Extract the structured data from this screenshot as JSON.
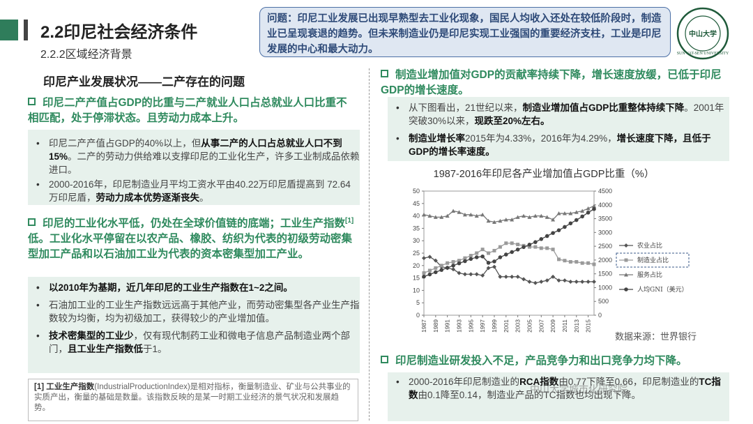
{
  "header": {
    "title": "2.2印尼社会经济条件",
    "subtitle": "2.2.2区域经济背景",
    "question": "问题：印尼工业发展已出现早熟型去工业化现象，国民人均收入还处在较低阶段时，制造业已呈现衰退的趋势。但未来制造业仍是印尼实现工业强国的重要经济支柱，工业是印尼发展的中心和最大动力。",
    "logo_text": "中山大学",
    "logo_ring_text": "SUN YAT-SEN UNIVERSITY"
  },
  "left": {
    "heading": "印尼产业发展状况——二产存在的问题",
    "point1": "印尼二产产值占GDP的比重与二产就业人口占总就业人口比重不相匹配，处于停滞状态。且劳动力成本上升。",
    "box1": {
      "b1_pre": "印尼二产产值占GDP的40%以上，但",
      "b1_bold": "从事二产的人口占总就业人口不到15%",
      "b1_post": "。二产的劳动力供给难以支撑印尼的工业化生产，许多工业制成品依赖进口。",
      "b2_pre": "2000-2016年，印尼制造业月平均工资水平由40.22万印尼盾提高到 72.64万印尼盾，",
      "b2_bold": "劳动力成本优势逐渐丧失",
      "b2_post": "。"
    },
    "point2_pre": "印尼的工业化水平低，仍处在全球价值链的底端；工业生产指数",
    "point2_sup": "[1]",
    "point2_post": "低。工业化水平停留在以农产品、橡胶、纺织为代表的初级劳动密集型加工产品和以石油加工业为代表的资本密集型加工产业。",
    "box2": {
      "b1": "以2010年为基期，近几年印尼的工业生产指数在1~2之间。",
      "b2": "石油加工业的工业生产指数远远高于其他产业，而劳动密集型各产业生产指数较为均衡，均为初级加工，获得较少的产业增加值。",
      "b3_bold": "技术密集型的工业少",
      "b3_mid": "，仅有现代制药工业和微电子信息产品制造业两个部门，",
      "b3_bold2": "且工业生产指数低",
      "b3_post": "于1。"
    },
    "footnote_label": "[1] 工业生产指数",
    "footnote_text": "(IndustrialProductionIndex)是相对指标，衡量制造业、矿业与公共事业的实质产出，衡量的基础是数量。该指数反映的是某一时期工业经济的景气状况和发展趋势。"
  },
  "right": {
    "point1": "制造业增加值对GDP的贡献率持续下降，增长速度放缓，已低于印尼GDP的增长速度。",
    "box1": {
      "b1_pre": "从下图看出，21世纪以来，",
      "b1_bold": "制造业增加值占GDP比重整体持续下降",
      "b1_mid": "。2001年突破30%以来，",
      "b1_bold2": "现跌至20%左右。",
      "b2_bold": "制造业增长率",
      "b2_mid": "2015年为4.33%，2016年为4.29%，",
      "b2_bold2": "增长速度下降，且低于GDP的增长率速度。"
    },
    "chart_title": "1987-2016年印尼各产业增加值占GDP比重（%）",
    "source": "数据来源：世界银行",
    "point2": "印尼制造业研发投入不足，产品竞争力和出口竞争力均下降。",
    "box2": {
      "b1_pre": "2000-2016年印尼制造业的",
      "b1_bold": "RCA指数",
      "b1_mid": "由0.77下降至0.66，印尼制造业的",
      "b1_bold2": "TC指数",
      "b1_post": "由0.1降至0.14，制造业产品的TC指数也均出现下降。"
    },
    "watermark": "中山大学城市化研究院"
  },
  "chart_data": {
    "type": "line",
    "title": "1987-2016年印尼各产业增加值占GDP比重（%）",
    "x": [
      1987,
      1988,
      1989,
      1990,
      1991,
      1992,
      1993,
      1994,
      1995,
      1996,
      1997,
      1998,
      1999,
      2000,
      2001,
      2002,
      2003,
      2004,
      2005,
      2006,
      2007,
      2008,
      2009,
      2010,
      2011,
      2012,
      2013,
      2014,
      2015,
      2016
    ],
    "x_tick_labels": [
      "1987",
      "1989",
      "1991",
      "1993",
      "1995",
      "1997",
      "1999",
      "2001",
      "2003",
      "2005",
      "2007",
      "2009",
      "2011",
      "2013",
      "2015"
    ],
    "y_left_ticks": [
      0,
      5,
      10,
      15,
      20,
      25,
      30,
      35,
      40,
      45,
      50
    ],
    "y_right_ticks": [
      0,
      500,
      1000,
      1500,
      2000,
      2500,
      3000,
      3500,
      4000,
      4500
    ],
    "ylim_left": [
      0,
      50
    ],
    "ylim_right": [
      0,
      4500
    ],
    "legend_position": "right",
    "series": [
      {
        "name": "农业占比",
        "axis": "left",
        "marker": "diamond",
        "color": "#555555",
        "values": [
          23,
          23.5,
          22,
          19.5,
          19,
          18.5,
          17,
          16.5,
          16.5,
          16.5,
          16,
          19,
          19.5,
          15.5,
          15.5,
          15.5,
          15.5,
          14.5,
          13.5,
          13,
          13.5,
          14,
          15.5,
          14,
          14,
          13.5,
          13.5,
          13.5,
          13.5,
          13.5
        ]
      },
      {
        "name": "制造业占比",
        "axis": "left",
        "marker": "square",
        "color": "#9a9a9a",
        "values": [
          17,
          18,
          19,
          20,
          21,
          21.5,
          22,
          23,
          24,
          25,
          26.5,
          25,
          26,
          27.5,
          29,
          29,
          28.5,
          28,
          27.5,
          27.5,
          27,
          27,
          26.5,
          22.5,
          22,
          21.5,
          21.5,
          21,
          21,
          20.5
        ]
      },
      {
        "name": "服务占比",
        "axis": "left",
        "marker": "triangle",
        "color": "#777777",
        "values": [
          40.5,
          40,
          39.5,
          39.5,
          40,
          42,
          41.5,
          40.5,
          40.5,
          40,
          40.5,
          38,
          37.5,
          38,
          38.5,
          38.5,
          39.5,
          40,
          39.5,
          40,
          40,
          39.5,
          38.5,
          41,
          41,
          41,
          41.5,
          42,
          43,
          44
        ]
      },
      {
        "name": "人均GNI（美元）",
        "axis": "right",
        "marker": "circle",
        "color": "#444444",
        "values": [
          1400,
          1480,
          1560,
          1640,
          1720,
          1800,
          1880,
          1960,
          2040,
          2100,
          2130,
          1900,
          1950,
          2100,
          2200,
          2290,
          2380,
          2470,
          2560,
          2650,
          2760,
          2870,
          2980,
          3080,
          3200,
          3330,
          3450,
          3580,
          3720,
          3850
        ]
      }
    ]
  }
}
